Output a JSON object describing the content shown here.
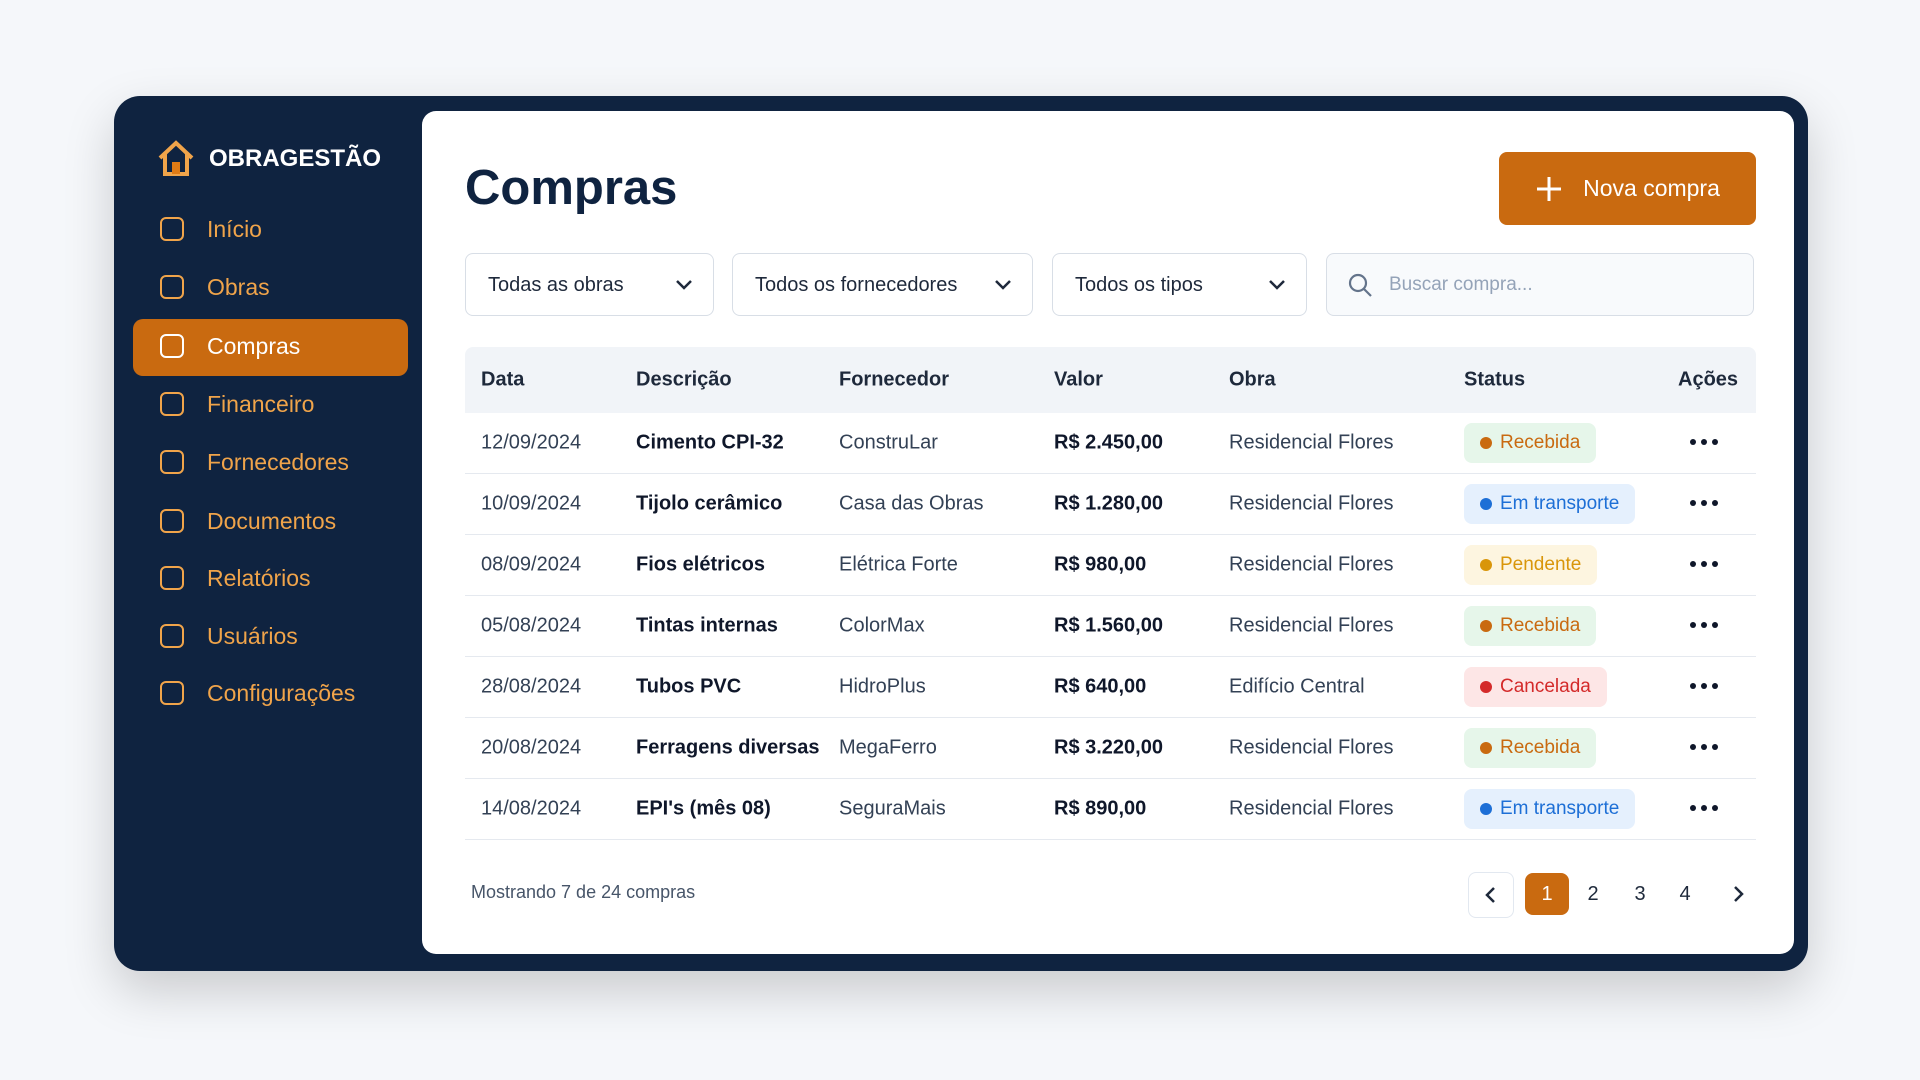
{
  "sidebar": {
    "brand": "OBRAGESTÃO",
    "nav": [
      "Início",
      "Obras",
      "Compras",
      "Financeiro",
      "Fornecedores",
      "Documentos",
      "Relatórios",
      "Usuários",
      "Configurações"
    ],
    "active": 2
  },
  "header": {
    "title": "Compras",
    "button": "Nova compra"
  },
  "filters": [
    "Todas as obras",
    "Todos os fornecedores",
    "Todos os tipos"
  ],
  "search": "Buscar compra...",
  "table": {
    "columns": [
      "Data",
      "Descrição",
      "Fornecedor",
      "Valor",
      "Obra",
      "Status",
      "Ações"
    ],
    "rows": [
      {
        "cells": [
          "12/09/2024",
          "Cimento CPI-32",
          "ConstruLar",
          "R$ 2.450,00",
          "Residencial Flores"
        ],
        "status": {
          "label": "Recebida",
          "color": "#c96a10",
          "bg": "#e6f6ea"
        }
      },
      {
        "cells": [
          "10/09/2024",
          "Tijolo cerâmico",
          "Casa das Obras",
          "R$ 1.280,00",
          "Residencial Flores"
        ],
        "status": {
          "label": "Em transporte",
          "color": "#1d6fd6",
          "bg": "#e5f0fd"
        }
      },
      {
        "cells": [
          "08/09/2024",
          "Fios elétricos",
          "Elétrica Forte",
          "R$ 980,00",
          "Residencial Flores"
        ],
        "status": {
          "label": "Pendente",
          "color": "#d9960a",
          "bg": "#fdf5e0"
        }
      },
      {
        "cells": [
          "05/08/2024",
          "Tintas internas",
          "ColorMax",
          "R$ 1.560,00",
          "Residencial Flores"
        ],
        "status": {
          "label": "Recebida",
          "color": "#c96a10",
          "bg": "#e6f6ea"
        }
      },
      {
        "cells": [
          "28/08/2024",
          "Tubos PVC",
          "HidroPlus",
          "R$ 640,00",
          "Edifício Central"
        ],
        "status": {
          "label": "Cancelada",
          "color": "#d42a2a",
          "bg": "#fde6e6"
        }
      },
      {
        "cells": [
          "20/08/2024",
          "Ferragens diversas",
          "MegaFerro",
          "R$ 3.220,00",
          "Residencial Flores"
        ],
        "status": {
          "label": "Recebida",
          "color": "#c96a10",
          "bg": "#e6f6ea"
        }
      },
      {
        "cells": [
          "14/08/2024",
          "EPI's (mês 08)",
          "SeguraMais",
          "R$ 890,00",
          "Residencial Flores"
        ],
        "status": {
          "label": "Em transporte",
          "color": "#1d6fd6",
          "bg": "#e5f0fd"
        }
      }
    ]
  },
  "footer": {
    "summary": "Mostrando 7 de 24 compras",
    "pages": [
      "1",
      "2",
      "3",
      "4"
    ],
    "current": 0
  }
}
